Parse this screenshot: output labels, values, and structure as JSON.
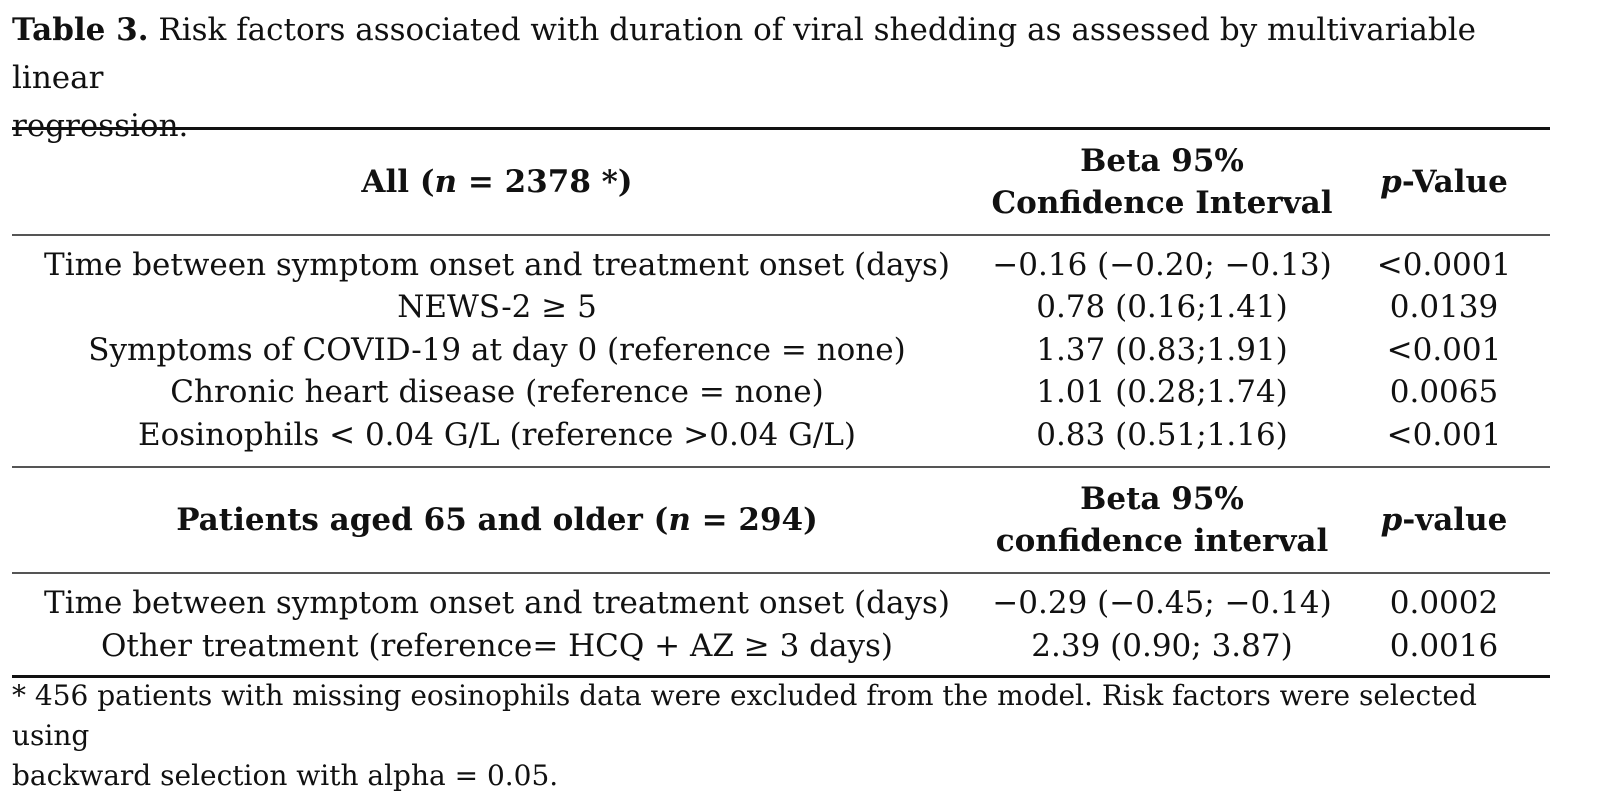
{
  "caption": {
    "label": "Table 3.",
    "line1": " Risk factors associated with duration of viral shedding as assessed by multivariable linear",
    "line2": "regression."
  },
  "section_all": {
    "header": {
      "col1_prefix": "All (",
      "col1_n": "n",
      "col1_suffix": " = 2378 *)",
      "col2_line1": "Beta 95%",
      "col2_line2": "Confidence Interval",
      "col3_p": "p",
      "col3_suffix": "-Value"
    },
    "rows": [
      {
        "factor": "Time between symptom onset and treatment onset (days)",
        "beta": "−0.16 (−0.20; −0.13)",
        "p": "<0.0001"
      },
      {
        "factor": "NEWS-2 ≥ 5",
        "beta": "0.78 (0.16;1.41)",
        "p": "0.0139"
      },
      {
        "factor": "Symptoms of COVID-19 at day 0 (reference = none)",
        "beta": "1.37 (0.83;1.91)",
        "p": "<0.001"
      },
      {
        "factor": "Chronic heart disease (reference = none)",
        "beta": "1.01 (0.28;1.74)",
        "p": "0.0065"
      },
      {
        "factor": "Eosinophils < 0.04 G/L (reference >0.04 G/L)",
        "beta": "0.83 (0.51;1.16)",
        "p": "<0.001"
      }
    ]
  },
  "section_older": {
    "header": {
      "col1_prefix": "Patients aged 65 and older (",
      "col1_n": "n",
      "col1_suffix": " = 294)",
      "col2_line1": "Beta 95%",
      "col2_line2": "confidence interval",
      "col3_p": "p",
      "col3_suffix": "-value"
    },
    "rows": [
      {
        "factor": "Time between symptom onset and treatment onset (days)",
        "beta": "−0.29 (−0.45; −0.14)",
        "p": "0.0002"
      },
      {
        "factor": "Other treatment (reference= HCQ + AZ ≥ 3 days)",
        "beta": "2.39 (0.90; 3.87)",
        "p": "0.0016"
      }
    ]
  },
  "footnote": {
    "line1": "* 456 patients with missing eosinophils data were excluded from the model. Risk factors were selected using",
    "line2": "backward selection with alpha = 0.05."
  }
}
